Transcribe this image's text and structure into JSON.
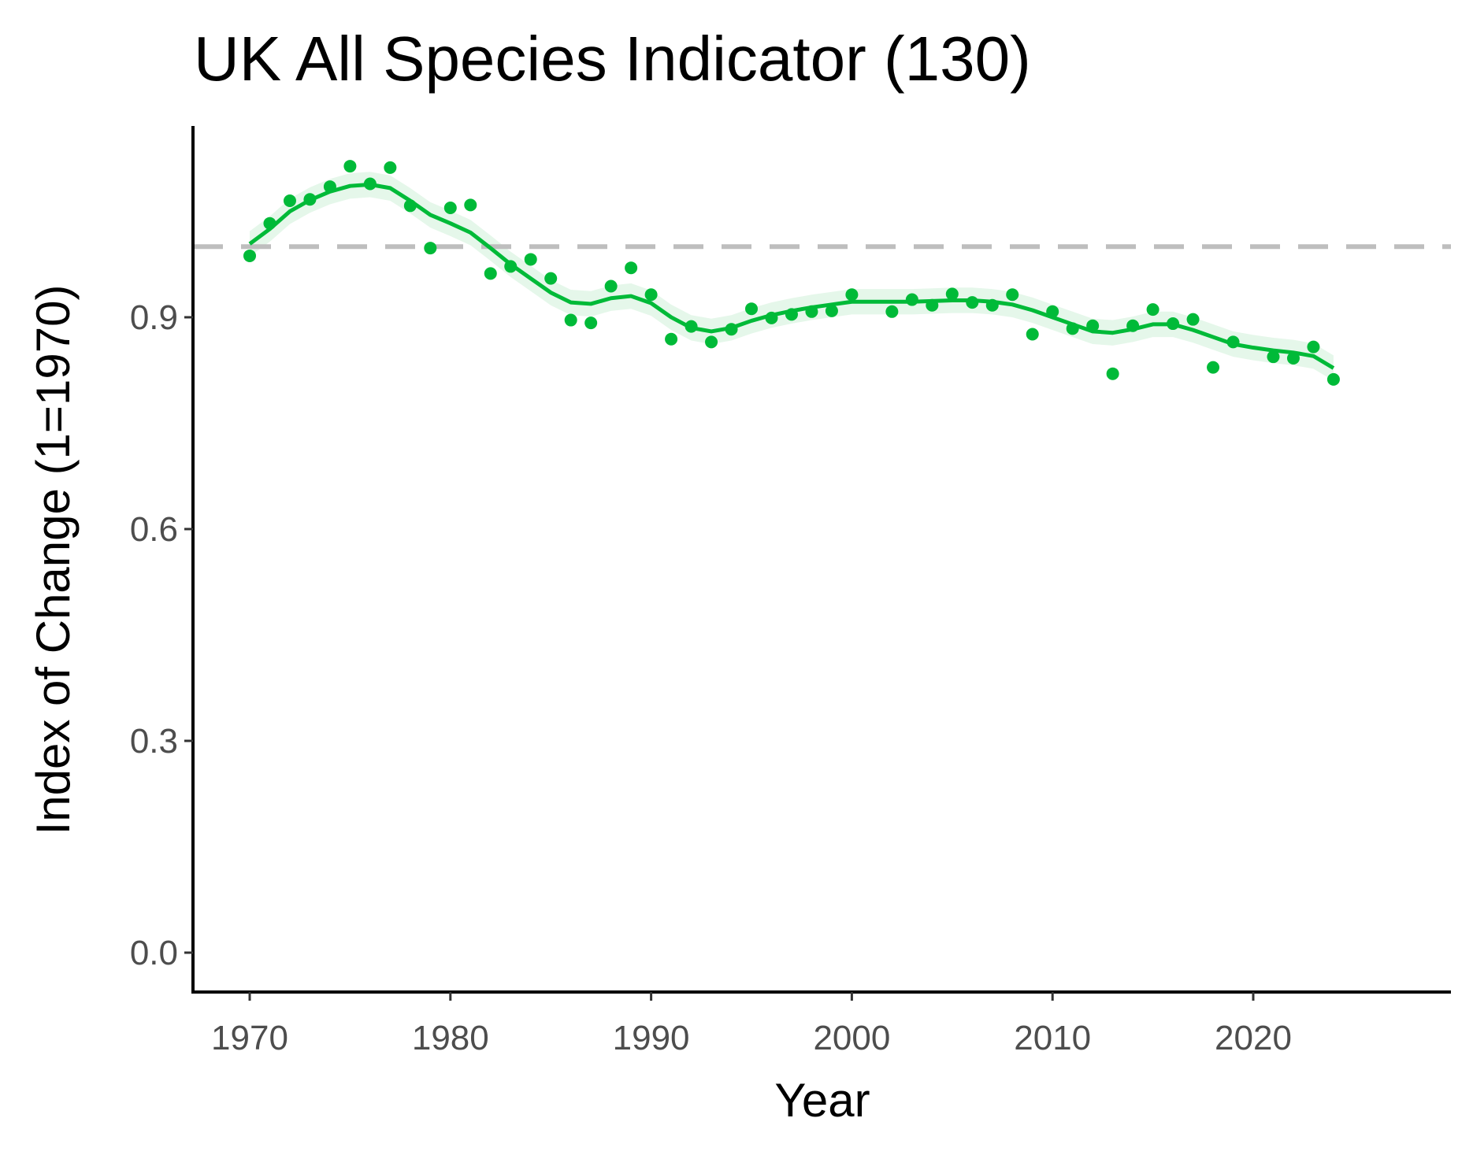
{
  "chart_data": {
    "type": "line",
    "title": "UK All Species Indicator (130)",
    "xlabel": "Year",
    "ylabel": "Index of Change (1=1970)",
    "xlim": [
      1967.3,
      2029.3
    ],
    "ylim": [
      -0.05,
      1.17
    ],
    "xticks": [
      1970,
      1980,
      1990,
      2000,
      2010,
      2020
    ],
    "yticks": [
      "0.0",
      "0.3",
      "0.6",
      "0.9"
    ],
    "reference_line": {
      "y": 1.0,
      "style": "dashed",
      "color": "#bebebe"
    },
    "grid": false,
    "colors": {
      "series": "#00ba38",
      "band": "#e5f7ea"
    },
    "points": {
      "x": [
        1970,
        1971,
        1972,
        1973,
        1974,
        1975,
        1976,
        1977,
        1978,
        1979,
        1980,
        1981,
        1982,
        1983,
        1984,
        1985,
        1986,
        1987,
        1988,
        1989,
        1990,
        1991,
        1992,
        1993,
        1994,
        1995,
        1996,
        1997,
        1998,
        1999,
        2000,
        2002,
        2003,
        2004,
        2005,
        2006,
        2007,
        2008,
        2009,
        2010,
        2011,
        2012,
        2013,
        2014,
        2015,
        2016,
        2017,
        2018,
        2019,
        2021,
        2022,
        2023,
        2024
      ],
      "y": [
        0.987,
        1.033,
        1.065,
        1.067,
        1.085,
        1.114,
        1.089,
        1.112,
        1.058,
        0.998,
        1.055,
        1.059,
        0.962,
        0.972,
        0.982,
        0.955,
        0.896,
        0.892,
        0.944,
        0.97,
        0.932,
        0.869,
        0.887,
        0.865,
        0.883,
        0.912,
        0.899,
        0.904,
        0.908,
        0.909,
        0.932,
        0.908,
        0.925,
        0.917,
        0.933,
        0.921,
        0.917,
        0.932,
        0.876,
        0.908,
        0.884,
        0.888,
        0.82,
        0.888,
        0.911,
        0.891,
        0.897,
        0.829,
        0.865,
        0.844,
        0.842,
        0.858,
        0.812
      ]
    },
    "smoothed": {
      "x": [
        1970,
        1971,
        1972,
        1973,
        1974,
        1975,
        1976,
        1977,
        1978,
        1979,
        1980,
        1981,
        1982,
        1983,
        1984,
        1985,
        1986,
        1987,
        1988,
        1989,
        1990,
        1991,
        1992,
        1993,
        1994,
        1995,
        1996,
        1997,
        1998,
        1999,
        2000,
        2001,
        2002,
        2003,
        2004,
        2005,
        2006,
        2007,
        2008,
        2009,
        2010,
        2011,
        2012,
        2013,
        2014,
        2015,
        2016,
        2017,
        2018,
        2019,
        2020,
        2021,
        2022,
        2023,
        2024
      ],
      "y": [
        1.004,
        1.025,
        1.05,
        1.066,
        1.078,
        1.086,
        1.088,
        1.083,
        1.065,
        1.045,
        1.033,
        1.02,
        0.998,
        0.975,
        0.955,
        0.935,
        0.921,
        0.919,
        0.927,
        0.93,
        0.92,
        0.9,
        0.885,
        0.88,
        0.885,
        0.895,
        0.903,
        0.909,
        0.914,
        0.918,
        0.922,
        0.922,
        0.922,
        0.922,
        0.923,
        0.924,
        0.924,
        0.922,
        0.918,
        0.91,
        0.9,
        0.89,
        0.88,
        0.878,
        0.883,
        0.89,
        0.89,
        0.882,
        0.872,
        0.862,
        0.857,
        0.853,
        0.85,
        0.845,
        0.828
      ],
      "band_halfwidth": 0.018
    }
  }
}
